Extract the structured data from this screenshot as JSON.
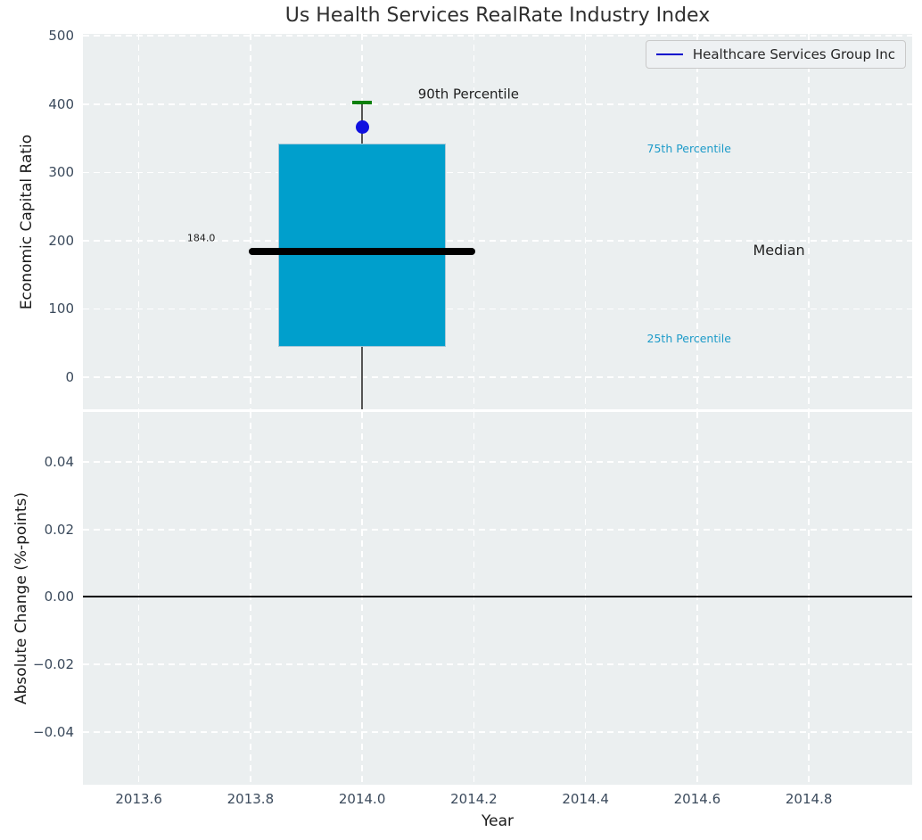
{
  "title": "Us Health Services RealRate Industry Index",
  "legend": {
    "label": "Healthcare Services Group Inc",
    "position": "upper right"
  },
  "colors": {
    "plot_bg": "#ebeff0",
    "grid": "#ffffff",
    "box_fill": "#009fcc",
    "box_edge": "#a8c8d8",
    "median_line": "#000000",
    "whisker": "#555555",
    "cap": "#0a800a",
    "company_dot": "#1010e0",
    "legend_line": "#0000cc",
    "percentile_label": "#1d9bc9",
    "tick_label": "#3b4a5c",
    "zero_line": "#000000",
    "title_text": "#2f2f2f"
  },
  "chart_data": {
    "type": "box",
    "title": "Us Health Services RealRate Industry Index",
    "xlabel": "Year",
    "xlim": [
      2013.5,
      2014.985
    ],
    "xticks": [
      2013.6,
      2013.8,
      2014.0,
      2014.2,
      2014.4,
      2014.6,
      2014.8
    ],
    "xtick_labels": [
      "2013.6",
      "2013.8",
      "2014.0",
      "2014.2",
      "2014.4",
      "2014.6",
      "2014.8"
    ],
    "grid": true,
    "panels": [
      {
        "ylabel": "Economic Capital Ratio",
        "ylim": [
          -47,
          503
        ],
        "yticks": [
          500,
          400,
          300,
          200,
          100,
          0
        ],
        "ytick_labels": [
          "500",
          "400",
          "300",
          "200",
          "100",
          "0"
        ],
        "box": {
          "year": 2014.0,
          "p25": 45,
          "median": 184.0,
          "p75": 342,
          "p90": 402,
          "company_value": 366,
          "median_label": "184.0",
          "box_halfwidth_years": 0.15,
          "median_halfwidth_years": 0.2025,
          "cap_halfwidth_years": 0.018,
          "whisker_extends_below_axis": true
        },
        "annotations": [
          {
            "text": "90th Percentile",
            "x": 2014.1,
            "y": 414,
            "size": 15,
            "color": "#1f1f1f",
            "anchor": "start"
          },
          {
            "text": "75th Percentile",
            "x": 2014.51,
            "y": 335,
            "size": 12.5,
            "color": "#1d9bc9",
            "anchor": "start"
          },
          {
            "text": "Median",
            "x": 2014.7,
            "y": 186,
            "size": 16,
            "color": "#1f1f1f",
            "anchor": "start"
          },
          {
            "text": "25th Percentile",
            "x": 2014.51,
            "y": 56,
            "size": 12.5,
            "color": "#1d9bc9",
            "anchor": "start"
          },
          {
            "text": "184.0",
            "x": 2013.737,
            "y": 204,
            "size": 11,
            "color": "#1f1f1f",
            "anchor": "end"
          }
        ]
      },
      {
        "ylabel": "Absolute Change (%-points)",
        "ylim": [
          -0.0556,
          0.0548
        ],
        "yticks": [
          0.04,
          0.02,
          0.0,
          -0.02,
          -0.04
        ],
        "ytick_labels": [
          "0.04",
          "0.02",
          "0.00",
          "−0.02",
          "−0.04"
        ],
        "zero_line": 0.0
      }
    ],
    "legend_entries": [
      "Healthcare Services Group Inc"
    ]
  }
}
